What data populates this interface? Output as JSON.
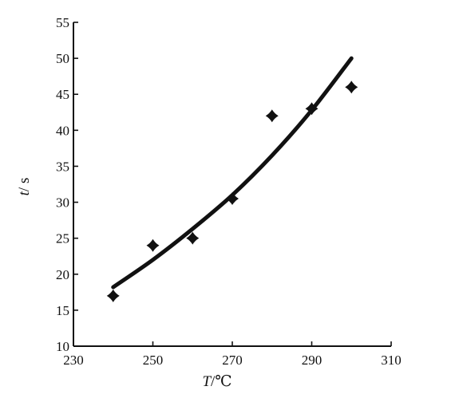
{
  "chart_data": {
    "type": "scatter",
    "xlabel_var": "T",
    "xlabel_unit": "/℃",
    "ylabel_var": "t",
    "ylabel_unit": "/ s",
    "xlim": [
      230,
      310
    ],
    "ylim": [
      10,
      55
    ],
    "x_ticks": [
      230,
      250,
      270,
      290,
      310
    ],
    "y_ticks": [
      10,
      15,
      20,
      25,
      30,
      35,
      40,
      45,
      50,
      55
    ],
    "grid": false,
    "points": [
      {
        "x": 240,
        "y": 17
      },
      {
        "x": 250,
        "y": 24
      },
      {
        "x": 260,
        "y": 25
      },
      {
        "x": 270,
        "y": 30.5
      },
      {
        "x": 280,
        "y": 42
      },
      {
        "x": 290,
        "y": 43
      },
      {
        "x": 300,
        "y": 46
      }
    ],
    "fit_curve": {
      "type": "exponential",
      "x": [
        240,
        250,
        260,
        270,
        280,
        290,
        300
      ],
      "y": [
        18.2,
        22.0,
        26.3,
        31.0,
        36.5,
        42.8,
        50.0
      ]
    }
  }
}
